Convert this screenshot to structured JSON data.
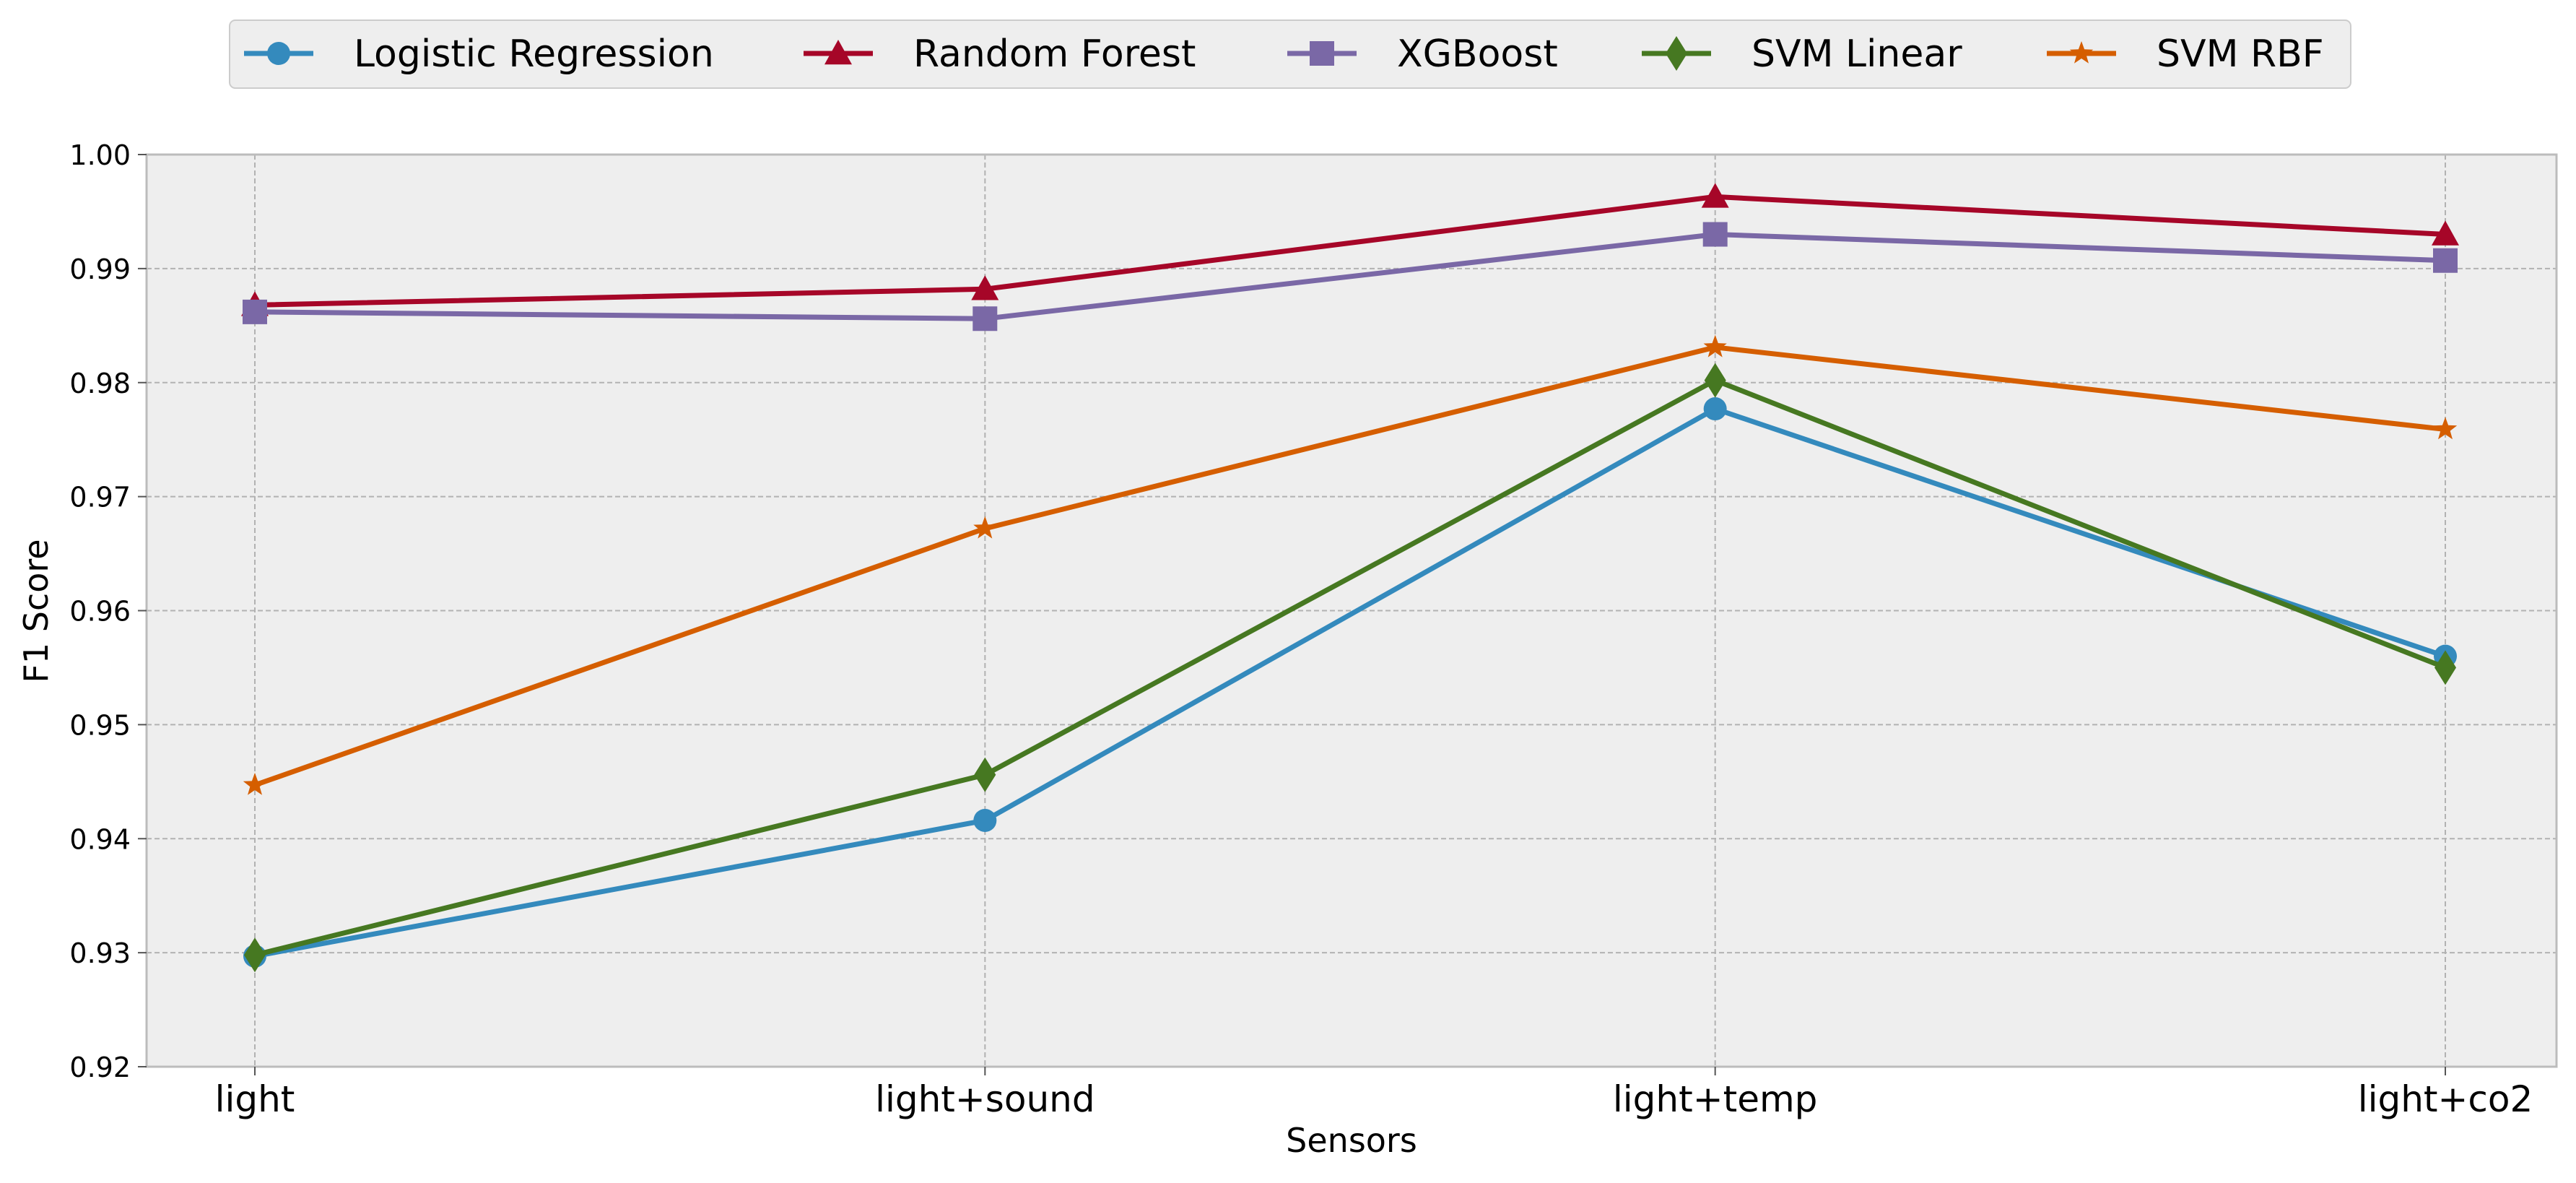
{
  "chart_data": {
    "type": "line",
    "title": "",
    "xlabel": "Sensors",
    "ylabel": "F1 Score",
    "categories": [
      "light",
      "light+sound",
      "light+temp",
      "light+co2"
    ],
    "ylim": [
      0.92,
      1.0
    ],
    "yticks": [
      "0.92",
      "0.93",
      "0.94",
      "0.95",
      "0.96",
      "0.97",
      "0.98",
      "0.99",
      "1.00"
    ],
    "grid": true,
    "legend_position": "top-center",
    "series": [
      {
        "name": "Logistic Regression",
        "color": "#348ABD",
        "marker": "circle",
        "values": [
          0.9297,
          0.9416,
          0.9777,
          0.956
        ]
      },
      {
        "name": "Random Forest",
        "color": "#A60628",
        "marker": "triangle",
        "values": [
          0.9868,
          0.9882,
          0.9963,
          0.993
        ]
      },
      {
        "name": "XGBoost",
        "color": "#7A68A6",
        "marker": "square",
        "values": [
          0.9862,
          0.9856,
          0.993,
          0.9907
        ]
      },
      {
        "name": "SVM Linear",
        "color": "#467821",
        "marker": "diamond",
        "values": [
          0.9298,
          0.9456,
          0.9802,
          0.955
        ]
      },
      {
        "name": "SVM RBF",
        "color": "#D55E00",
        "marker": "star",
        "values": [
          0.9447,
          0.9672,
          0.9831,
          0.9759
        ]
      }
    ]
  }
}
